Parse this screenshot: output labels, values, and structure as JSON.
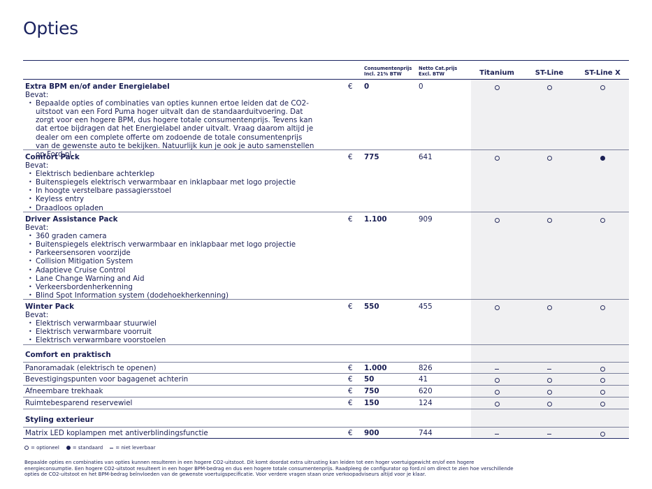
{
  "page_title": "Opties",
  "header": {
    "price_incl_line1": "Consumentenprijs",
    "price_incl_line2": "Incl. 21% BTW",
    "price_net_line1": "Netto Cat.prijs",
    "price_net_line2": "Excl. BTW",
    "trims": [
      "Titanium",
      "ST-Line",
      "ST-Line X"
    ]
  },
  "currency": "€",
  "packs": [
    {
      "name": "Extra BPM en/of ander Energielabel",
      "bevat": "Bevat:",
      "items": [
        "Bepaalde opties of combinaties van opties kunnen ertoe leiden dat de CO2-uitstoot van een Ford Puma hoger uitvalt dan de standaarduitvoering. Dat zorgt voor een hogere BPM, dus hogere totale consumentenprijs. Tevens kan dat ertoe bijdragen dat het Energielabel ander uitvalt. Vraag daarom altijd je dealer om een complete offerte om zodoende de totale consumentenprijs van de gewenste auto te bekijken. Natuurlijk kun je ook je auto samenstellen op Ford.nl."
      ],
      "price": "0",
      "net": "0",
      "avail": [
        "optional",
        "optional",
        "optional"
      ]
    },
    {
      "name": "Comfort Pack",
      "bevat": "Bevat:",
      "items": [
        "Elektrisch bedienbare achterklep",
        "Buitenspiegels elektrisch verwarmbaar en inklapbaar met logo projectie",
        "In hoogte verstelbare passagiersstoel",
        "Keyless entry",
        "Draadloos opladen"
      ],
      "price": "775",
      "net": "641",
      "avail": [
        "optional",
        "optional",
        "standard"
      ]
    },
    {
      "name": "Driver Assistance Pack",
      "bevat": "Bevat:",
      "items": [
        "360 graden camera",
        "Buitenspiegels elektrisch verwarmbaar en inklapbaar met logo projectie",
        "Parkeersensoren voorzijde",
        "Collision Mitigation System",
        "Adaptieve Cruise Control",
        "Lane Change Warning and Aid",
        "Verkeersbordenherkenning",
        "Blind Spot Information system (dodehoekherkenning)"
      ],
      "price": "1.100",
      "net": "909",
      "avail": [
        "optional",
        "optional",
        "optional"
      ]
    },
    {
      "name": "Winter Pack",
      "bevat": "Bevat:",
      "items": [
        "Elektrisch verwarmbaar stuurwiel",
        "Elektrisch verwarmbare voorruit",
        "Elektrisch verwarmbare voorstoelen"
      ],
      "price": "550",
      "net": "455",
      "avail": [
        "optional",
        "optional",
        "optional"
      ]
    }
  ],
  "comfort_section": {
    "title": "Comfort en praktisch",
    "rows": [
      {
        "name": "Panoramadak (elektrisch te openen)",
        "price": "1.000",
        "net": "826",
        "avail": [
          "na",
          "na",
          "optional"
        ]
      },
      {
        "name": "Bevestigingspunten voor bagagenet achterin",
        "price": "50",
        "net": "41",
        "avail": [
          "optional",
          "optional",
          "optional"
        ]
      },
      {
        "name": "Afneembare trekhaak",
        "price": "750",
        "net": "620",
        "avail": [
          "optional",
          "optional",
          "optional"
        ]
      },
      {
        "name": "Ruimtebesparend reservewiel",
        "price": "150",
        "net": "124",
        "avail": [
          "optional",
          "optional",
          "optional"
        ]
      }
    ]
  },
  "styling_section": {
    "title": "Styling exterieur",
    "rows": [
      {
        "name": "Matrix LED koplampen met antiverblindingsfunctie",
        "price": "900",
        "net": "744",
        "avail": [
          "na",
          "na",
          "optional"
        ]
      }
    ]
  },
  "legend": {
    "optional": "= optioneel",
    "standard": "= standaard",
    "na": "= niet leverbaar"
  },
  "footnote": "Bepaalde opties en combinaties van opties kunnen resulteren in een hogere CO2-uitstoot. Dit komt doordat extra uitrusting kan leiden tot een hoger voertuiggewicht en/of een hogere energieconsumptie. Een hogere CO2-uitstoot resulteert in een hoger BPM-bedrag en dus een hogere totale consumentenprijs. Raadpleeg de configurator op ford.nl om direct te zien hoe verschillende opties de CO2-uitstoot en het BPM-bedrag beïnvloeden van de gewenste voertuigspecificatie. Voor verdere vragen staan onze verkoopadviseurs altijd voor je klaar."
}
